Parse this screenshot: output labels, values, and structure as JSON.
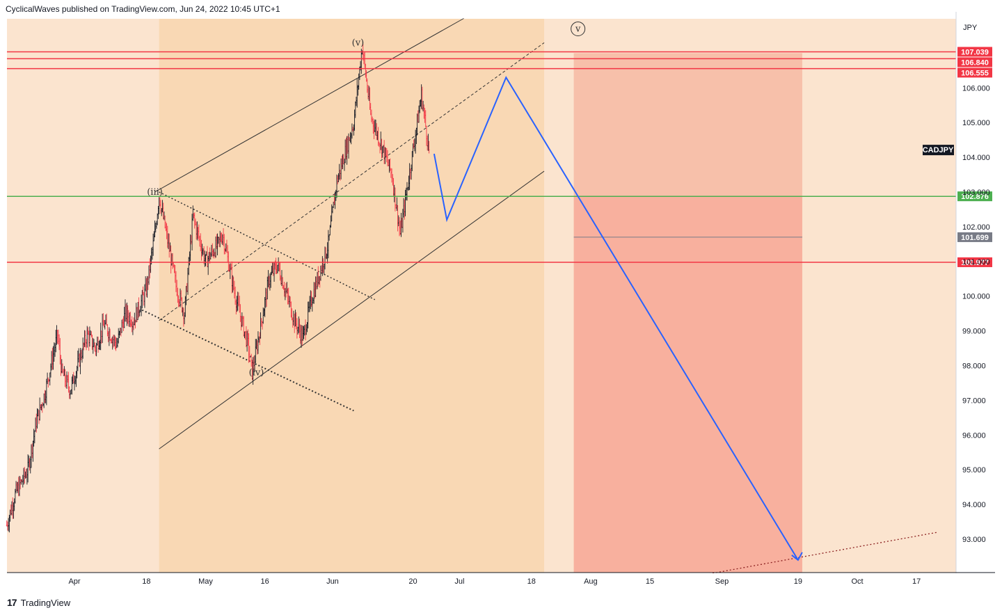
{
  "header": {
    "published": "CyclicalWaves published on TradingView.com, Jun 24, 2022 10:45 UTC+1"
  },
  "footer": {
    "logo_mark": "17",
    "brand": "TradingView"
  },
  "colors": {
    "background": "#fbe4cf",
    "channel_fill": "#f9d8b4",
    "target_zone": "#f8b09e",
    "target_zone_upper": "#f7c0aa",
    "resistance": "#f23645",
    "support": "#4caf50",
    "projection": "#2962ff",
    "candle_up": "#131722",
    "candle_down": "#f23645"
  },
  "chart_data": {
    "type": "candlestick",
    "symbol": "CADJPY",
    "currency": "JPY",
    "ylim": [
      92.0,
      108.0
    ],
    "y_ticks": [
      "93.000",
      "94.000",
      "95.000",
      "96.000",
      "97.000",
      "98.000",
      "99.000",
      "100.000",
      "101.000",
      "102.000",
      "103.000",
      "104.000",
      "105.000",
      "106.000"
    ],
    "x_ticks": [
      {
        "label": "Apr",
        "date": "2022-04-01"
      },
      {
        "label": "18",
        "date": "2022-04-18"
      },
      {
        "label": "May",
        "date": "2022-05-02"
      },
      {
        "label": "16",
        "date": "2022-05-16"
      },
      {
        "label": "Jun",
        "date": "2022-06-01"
      },
      {
        "label": "20",
        "date": "2022-06-20"
      },
      {
        "label": "Jul",
        "date": "2022-07-01"
      },
      {
        "label": "18",
        "date": "2022-07-18"
      },
      {
        "label": "Aug",
        "date": "2022-08-01"
      },
      {
        "label": "15",
        "date": "2022-08-15"
      },
      {
        "label": "Sep",
        "date": "2022-09-01"
      },
      {
        "label": "19",
        "date": "2022-09-19"
      },
      {
        "label": "Oct",
        "date": "2022-10-03"
      },
      {
        "label": "17",
        "date": "2022-10-17"
      }
    ],
    "price_path": [
      [
        "2022-03-16",
        93.4
      ],
      [
        "2022-03-18",
        94.3
      ],
      [
        "2022-03-21",
        95.0
      ],
      [
        "2022-03-23",
        96.4
      ],
      [
        "2022-03-25",
        97.2
      ],
      [
        "2022-03-28",
        98.9
      ],
      [
        "2022-03-29",
        97.8
      ],
      [
        "2022-03-31",
        97.3
      ],
      [
        "2022-04-04",
        98.9
      ],
      [
        "2022-04-06",
        98.5
      ],
      [
        "2022-04-08",
        99.2
      ],
      [
        "2022-04-11",
        98.6
      ],
      [
        "2022-04-13",
        99.5
      ],
      [
        "2022-04-15",
        99.3
      ],
      [
        "2022-04-18",
        100.2
      ],
      [
        "2022-04-20",
        101.8
      ],
      [
        "2022-04-21",
        102.9
      ],
      [
        "2022-04-25",
        100.3
      ],
      [
        "2022-04-27",
        99.5
      ],
      [
        "2022-04-29",
        102.3
      ],
      [
        "2022-05-02",
        101.0
      ],
      [
        "2022-05-05",
        101.5
      ],
      [
        "2022-05-06",
        101.8
      ],
      [
        "2022-05-09",
        100.0
      ],
      [
        "2022-05-12",
        98.6
      ],
      [
        "2022-05-13",
        97.8
      ],
      [
        "2022-05-17",
        100.5
      ],
      [
        "2022-05-19",
        100.9
      ],
      [
        "2022-05-23",
        99.3
      ],
      [
        "2022-05-25",
        98.8
      ],
      [
        "2022-05-27",
        99.9
      ],
      [
        "2022-05-31",
        101.5
      ],
      [
        "2022-06-02",
        103.3
      ],
      [
        "2022-06-06",
        105.0
      ],
      [
        "2022-06-08",
        107.2
      ],
      [
        "2022-06-10",
        105.2
      ],
      [
        "2022-06-13",
        104.2
      ],
      [
        "2022-06-15",
        103.5
      ],
      [
        "2022-06-17",
        101.8
      ],
      [
        "2022-06-20",
        104.2
      ],
      [
        "2022-06-22",
        105.8
      ],
      [
        "2022-06-24",
        104.0
      ]
    ],
    "projection_path": [
      [
        "2022-06-25",
        104.1
      ],
      [
        "2022-06-28",
        102.2
      ],
      [
        "2022-07-12",
        106.3
      ],
      [
        "2022-09-19",
        92.4
      ]
    ],
    "horizontal_levels": [
      {
        "price": 107.039,
        "label": "107.039",
        "color": "#f23645",
        "line": true
      },
      {
        "price": 106.84,
        "label": "106.840",
        "color": "#f23645",
        "line": true
      },
      {
        "price": 106.555,
        "label": "106.555",
        "color": "#f23645",
        "line": true
      },
      {
        "price": 102.876,
        "label": "102.876",
        "color": "#4caf50",
        "line": true
      },
      {
        "price": 101.699,
        "label": "101.699",
        "color": "#787b86",
        "line": false
      },
      {
        "price": 100.977,
        "label": "100.977",
        "color": "#f23645",
        "line": true
      }
    ],
    "wave_labels": [
      {
        "text": "(iii)",
        "date": "2022-04-20",
        "price": 103.0
      },
      {
        "text": "(iv)",
        "date": "2022-05-14",
        "price": 97.8
      },
      {
        "text": "(v)",
        "date": "2022-06-07",
        "price": 107.3
      },
      {
        "text": "v",
        "date": "2022-07-29",
        "price": 107.7,
        "circled": true
      }
    ],
    "symbol_tag": {
      "text": "CADJPY",
      "price": 104.2
    }
  }
}
